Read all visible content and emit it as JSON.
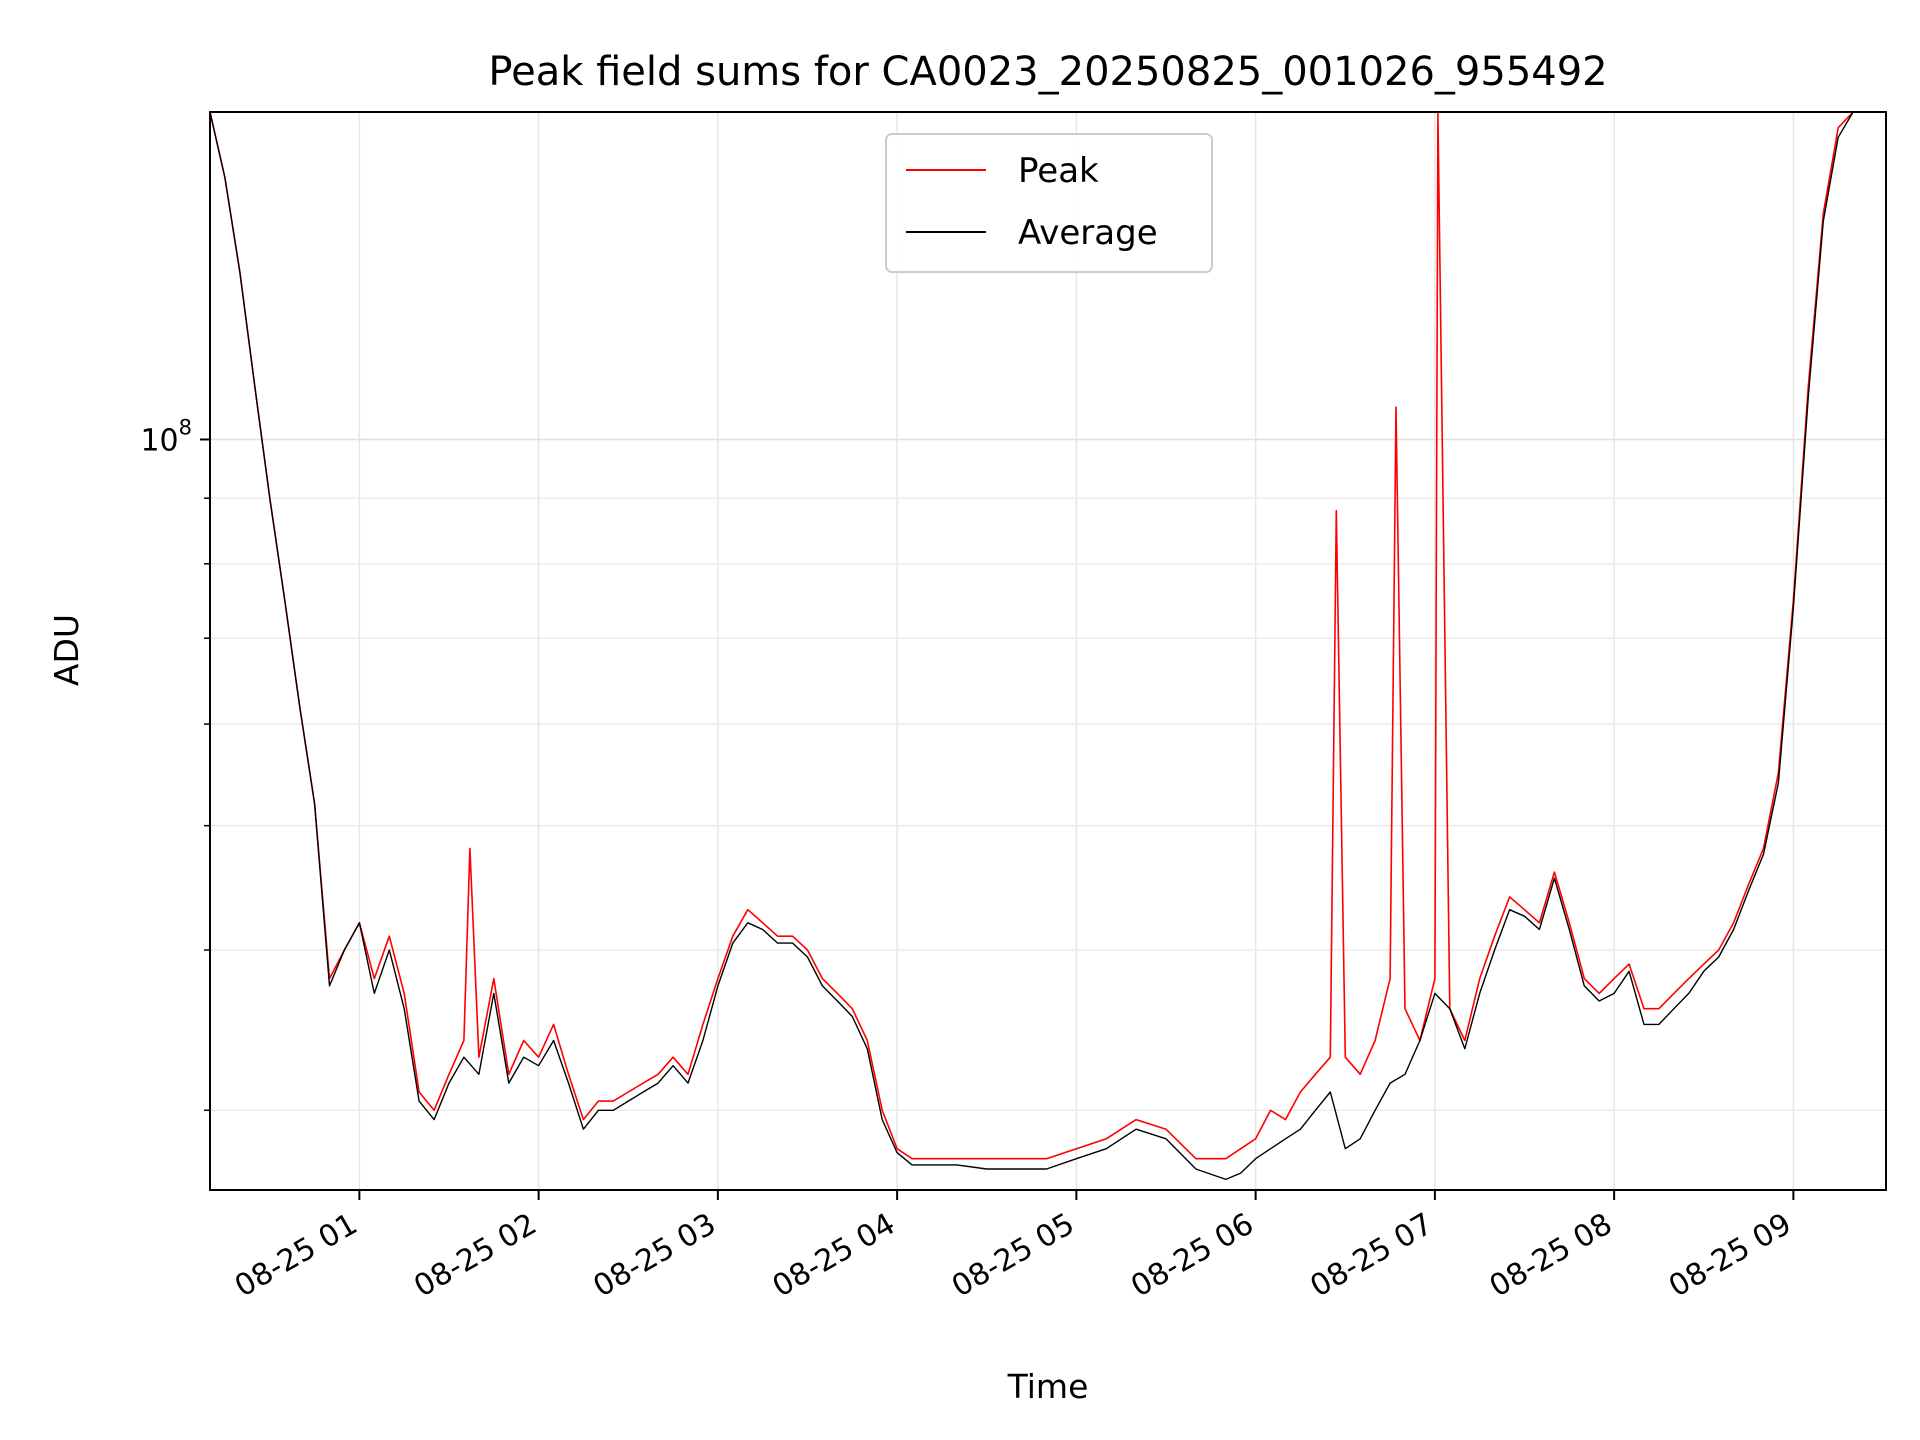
{
  "chart_data": {
    "type": "line",
    "title": "Peak field sums for CA0023_20250825_001026_955492",
    "xlabel": "Time",
    "ylabel": "ADU",
    "yscale": "log",
    "grid": true,
    "legend_position": "upper-center",
    "x_ticks": [
      "08-25 01",
      "08-25 02",
      "08-25 03",
      "08-25 04",
      "08-25 05",
      "08-25 06",
      "08-25 07",
      "08-25 08",
      "08-25 09"
    ],
    "y_ticks": [
      {
        "value": 100000000,
        "base": "10",
        "exponent": "8"
      }
    ],
    "xlim": [
      "2025-08-25 00:10",
      "2025-08-25 09:31"
    ],
    "ylim": [
      26000000,
      180000000
    ],
    "series": [
      {
        "name": "Peak",
        "color": "#ff0000",
        "x": [
          "00:10",
          "00:15",
          "00:20",
          "00:25",
          "00:30",
          "00:35",
          "00:40",
          "00:45",
          "00:50",
          "00:55",
          "01:00",
          "01:05",
          "01:10",
          "01:15",
          "01:20",
          "01:25",
          "01:30",
          "01:35",
          "01:37",
          "01:40",
          "01:45",
          "01:50",
          "01:55",
          "02:00",
          "02:05",
          "02:10",
          "02:15",
          "02:20",
          "02:25",
          "02:30",
          "02:35",
          "02:40",
          "02:45",
          "02:50",
          "02:55",
          "03:00",
          "03:05",
          "03:10",
          "03:15",
          "03:20",
          "03:25",
          "03:30",
          "03:35",
          "03:40",
          "03:45",
          "03:50",
          "03:55",
          "04:00",
          "04:05",
          "04:10",
          "04:20",
          "04:30",
          "04:40",
          "04:50",
          "05:00",
          "05:10",
          "05:20",
          "05:30",
          "05:40",
          "05:50",
          "05:55",
          "06:00",
          "06:05",
          "06:10",
          "06:15",
          "06:20",
          "06:25",
          "06:27",
          "06:30",
          "06:35",
          "06:40",
          "06:45",
          "06:47",
          "06:50",
          "06:55",
          "07:00",
          "07:01",
          "07:05",
          "07:10",
          "07:15",
          "07:20",
          "07:25",
          "07:30",
          "07:35",
          "07:40",
          "07:45",
          "07:50",
          "07:55",
          "08:00",
          "08:05",
          "08:10",
          "08:15",
          "08:20",
          "08:25",
          "08:30",
          "08:35",
          "08:40",
          "08:45",
          "08:50",
          "08:55",
          "09:00",
          "09:05",
          "09:10",
          "09:15",
          "09:20",
          "09:25",
          "09:31"
        ],
        "values": [
          180000000,
          160000000,
          135000000,
          110000000,
          90000000,
          75000000,
          62000000,
          52000000,
          38000000,
          40000000,
          42000000,
          38000000,
          41000000,
          37000000,
          31000000,
          30000000,
          32000000,
          34000000,
          48000000,
          33000000,
          38000000,
          32000000,
          34000000,
          33000000,
          35000000,
          32000000,
          29500000,
          30500000,
          30500000,
          31000000,
          31500000,
          32000000,
          33000000,
          32000000,
          35000000,
          38000000,
          41000000,
          43000000,
          42000000,
          41000000,
          41000000,
          40000000,
          38000000,
          37000000,
          36000000,
          34000000,
          30000000,
          28000000,
          27500000,
          27500000,
          27500000,
          27500000,
          27500000,
          27500000,
          28000000,
          28500000,
          29500000,
          29000000,
          27500000,
          27500000,
          28000000,
          28500000,
          30000000,
          29500000,
          31000000,
          32000000,
          33000000,
          88000000,
          33000000,
          32000000,
          34000000,
          38000000,
          106000000,
          36000000,
          34000000,
          38000000,
          180000000,
          36000000,
          34000000,
          38000000,
          41000000,
          44000000,
          43000000,
          42000000,
          46000000,
          42000000,
          38000000,
          37000000,
          38000000,
          39000000,
          36000000,
          36000000,
          37000000,
          38000000,
          39000000,
          40000000,
          42000000,
          45000000,
          48000000,
          55000000,
          75000000,
          110000000,
          150000000,
          175000000,
          180000000,
          180000000,
          180000000
        ]
      },
      {
        "name": "Average",
        "color": "#000000",
        "x": [
          "00:10",
          "00:15",
          "00:20",
          "00:25",
          "00:30",
          "00:35",
          "00:40",
          "00:45",
          "00:50",
          "00:55",
          "01:00",
          "01:05",
          "01:10",
          "01:15",
          "01:20",
          "01:25",
          "01:30",
          "01:35",
          "01:40",
          "01:45",
          "01:50",
          "01:55",
          "02:00",
          "02:05",
          "02:10",
          "02:15",
          "02:20",
          "02:25",
          "02:30",
          "02:35",
          "02:40",
          "02:45",
          "02:50",
          "02:55",
          "03:00",
          "03:05",
          "03:10",
          "03:15",
          "03:20",
          "03:25",
          "03:30",
          "03:35",
          "03:40",
          "03:45",
          "03:50",
          "03:55",
          "04:00",
          "04:05",
          "04:10",
          "04:20",
          "04:30",
          "04:40",
          "04:50",
          "05:00",
          "05:10",
          "05:20",
          "05:30",
          "05:40",
          "05:50",
          "05:55",
          "06:00",
          "06:05",
          "06:10",
          "06:15",
          "06:20",
          "06:25",
          "06:30",
          "06:35",
          "06:40",
          "06:45",
          "06:50",
          "06:55",
          "07:00",
          "07:05",
          "07:10",
          "07:15",
          "07:20",
          "07:25",
          "07:30",
          "07:35",
          "07:40",
          "07:45",
          "07:50",
          "07:55",
          "08:00",
          "08:05",
          "08:10",
          "08:15",
          "08:20",
          "08:25",
          "08:30",
          "08:35",
          "08:40",
          "08:45",
          "08:50",
          "08:55",
          "09:00",
          "09:05",
          "09:10",
          "09:15",
          "09:20",
          "09:25",
          "09:31"
        ],
        "values": [
          180000000,
          160000000,
          135000000,
          110000000,
          90000000,
          75000000,
          62000000,
          52000000,
          37500000,
          40000000,
          42000000,
          37000000,
          40000000,
          36000000,
          30500000,
          29500000,
          31500000,
          33000000,
          32000000,
          37000000,
          31500000,
          33000000,
          32500000,
          34000000,
          31500000,
          29000000,
          30000000,
          30000000,
          30500000,
          31000000,
          31500000,
          32500000,
          31500000,
          34000000,
          37500000,
          40500000,
          42000000,
          41500000,
          40500000,
          40500000,
          39500000,
          37500000,
          36500000,
          35500000,
          33500000,
          29500000,
          27800000,
          27200000,
          27200000,
          27200000,
          27000000,
          27000000,
          27000000,
          27500000,
          28000000,
          29000000,
          28500000,
          27000000,
          26500000,
          26800000,
          27500000,
          28000000,
          28500000,
          29000000,
          30000000,
          31000000,
          28000000,
          28500000,
          30000000,
          31500000,
          32000000,
          34000000,
          37000000,
          36000000,
          33500000,
          37000000,
          40000000,
          43000000,
          42500000,
          41500000,
          45500000,
          41500000,
          37500000,
          36500000,
          37000000,
          38500000,
          35000000,
          35000000,
          36000000,
          37000000,
          38500000,
          39500000,
          41500000,
          44500000,
          47500000,
          54000000,
          74000000,
          108000000,
          148000000,
          172000000,
          180000000,
          180000000,
          180000000
        ]
      }
    ]
  }
}
